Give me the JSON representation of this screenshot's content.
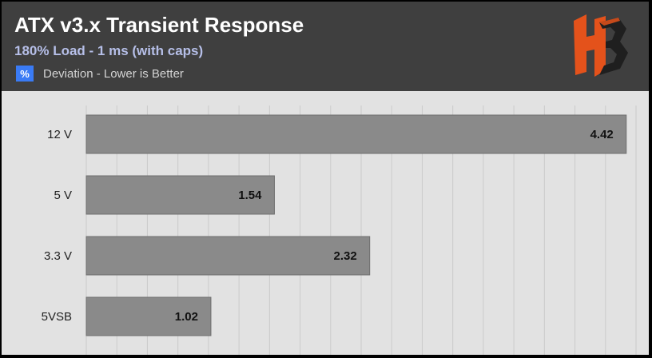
{
  "colors": {
    "header_bg": "#3f3f3f",
    "plot_bg": "#e2e2e2",
    "bar": "#8a8a8a",
    "bar_border": "#6e6e6e",
    "legend_swatch": "#3a7bf5",
    "logo_primary": "#e4521b",
    "logo_secondary": "#1f1f1f"
  },
  "logo": {
    "name": "hb-logo",
    "letters": "HB"
  },
  "chart_data": {
    "type": "bar",
    "orientation": "horizontal",
    "title": "ATX v3.x Transient Response",
    "subtitle": "180% Load - 1 ms (with caps)",
    "legend": {
      "icon": "%",
      "label": "Deviation - Lower is Better",
      "placement": "top-left"
    },
    "categories": [
      "12 V",
      "5 V",
      "3.3 V",
      "5VSB"
    ],
    "series": [
      {
        "name": "Deviation - Lower is Better",
        "values": [
          4.42,
          1.54,
          2.32,
          1.02
        ]
      }
    ],
    "xlim": [
      0,
      4.5
    ],
    "grid": true
  }
}
